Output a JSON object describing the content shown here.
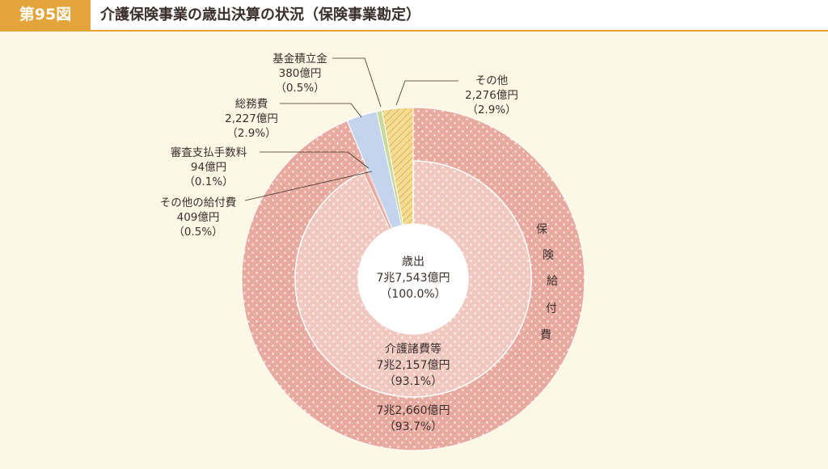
{
  "header": {
    "fig_label": "第95図",
    "title": "介護保険事業の歳出決算の状況（保険事業勘定）"
  },
  "chart_data": {
    "type": "pie",
    "title": "介護保険事業の歳出決算の状況（保険事業勘定）",
    "center": {
      "label": "歳出",
      "value": "7兆7,543億円",
      "pct": "（100.0%）"
    },
    "outer_ring": {
      "slices": [
        {
          "name": "保険給付費",
          "value_oku": 72660,
          "value": "7兆2,660億円",
          "percent": 93.7,
          "pct": "（93.7%）",
          "color": "#e8a99e"
        },
        {
          "name": "その他",
          "value_oku": 2276,
          "value": "2,276億円",
          "percent": 2.9,
          "pct": "（2.9%）",
          "color": "#f2d27e"
        },
        {
          "name": "基金積立金",
          "value_oku": 380,
          "value": "380億円",
          "percent": 0.5,
          "pct": "（0.5%）",
          "color": "#c9d99a"
        },
        {
          "name": "総務費",
          "value_oku": 2227,
          "value": "2,227億円",
          "percent": 2.9,
          "pct": "（2.9%）",
          "color": "#c3d4ec"
        }
      ]
    },
    "inner_ring": {
      "slices": [
        {
          "name": "介護諸費等",
          "value_oku": 72157,
          "value": "7兆2,157億円",
          "percent": 93.1,
          "pct": "（93.1%）",
          "color": "#f0c8c0"
        },
        {
          "name": "審査支払手数料",
          "value_oku": 94,
          "value": "94億円",
          "percent": 0.1,
          "pct": "（0.1%）",
          "color": "#d98a80"
        },
        {
          "name": "その他の給付費",
          "value_oku": 409,
          "value": "409億円",
          "percent": 0.5,
          "pct": "（0.5%）",
          "color": "#e8a99e"
        }
      ]
    },
    "ring_label_vertical": [
      "保",
      "険",
      "給",
      "付",
      "費"
    ]
  }
}
